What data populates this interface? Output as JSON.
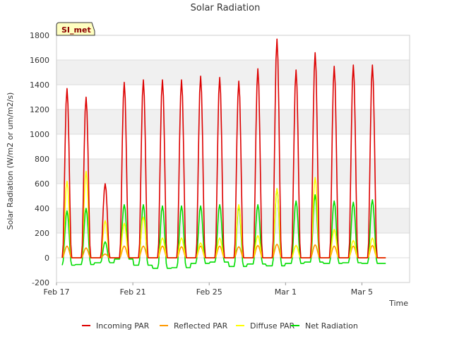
{
  "chart_data": {
    "type": "line",
    "title": "Solar Radiation",
    "xlabel": "Time",
    "ylabel": "Solar Radiation (W/m2 or um/m2/s)",
    "site_label": "SI_met",
    "ylim": [
      -200,
      1800
    ],
    "yticks": [
      -200,
      0,
      200,
      400,
      600,
      800,
      1000,
      1200,
      1400,
      1600,
      1800
    ],
    "xlim_days": [
      0,
      18.5
    ],
    "xticks": [
      {
        "day": 0,
        "label": "Feb 17"
      },
      {
        "day": 4,
        "label": "Feb 21"
      },
      {
        "day": 8,
        "label": "Feb 25"
      },
      {
        "day": 12,
        "label": "Mar 1"
      },
      {
        "day": 16,
        "label": "Mar 5"
      }
    ],
    "background_bands": [
      [
        1000,
        1200
      ],
      [
        1400,
        1600
      ],
      [
        600,
        800
      ],
      [
        200,
        400
      ]
    ],
    "grid": true,
    "legend_position": "bottom",
    "series": [
      {
        "name": "Incoming PAR",
        "color": "#dd0000",
        "peaks": [
          1370,
          1300,
          600,
          1420,
          1440,
          1440,
          1440,
          1470,
          1460,
          1430,
          1530,
          1770,
          1520,
          1660,
          1550,
          1560,
          1560
        ],
        "baseline": 0
      },
      {
        "name": "Reflected PAR",
        "color": "#ff9900",
        "peaks": [
          95,
          80,
          30,
          95,
          95,
          95,
          90,
          95,
          95,
          90,
          100,
          110,
          100,
          105,
          95,
          95,
          100
        ],
        "baseline": 0
      },
      {
        "name": "Diffuse PAR",
        "color": "#ffff00",
        "peaks": [
          620,
          700,
          300,
          280,
          330,
          160,
          160,
          120,
          160,
          430,
          180,
          560,
          100,
          650,
          230,
          140,
          160
        ],
        "baseline": 0
      },
      {
        "name": "Net Radiation",
        "color": "#00dd00",
        "peaks": [
          380,
          400,
          130,
          430,
          430,
          420,
          420,
          420,
          430,
          420,
          430,
          560,
          460,
          510,
          460,
          450,
          470
        ],
        "nights": [
          -60,
          -55,
          -40,
          -10,
          -60,
          -85,
          -80,
          -45,
          -35,
          -70,
          -50,
          -65,
          -45,
          -35,
          -45,
          -40,
          -45
        ]
      }
    ]
  }
}
